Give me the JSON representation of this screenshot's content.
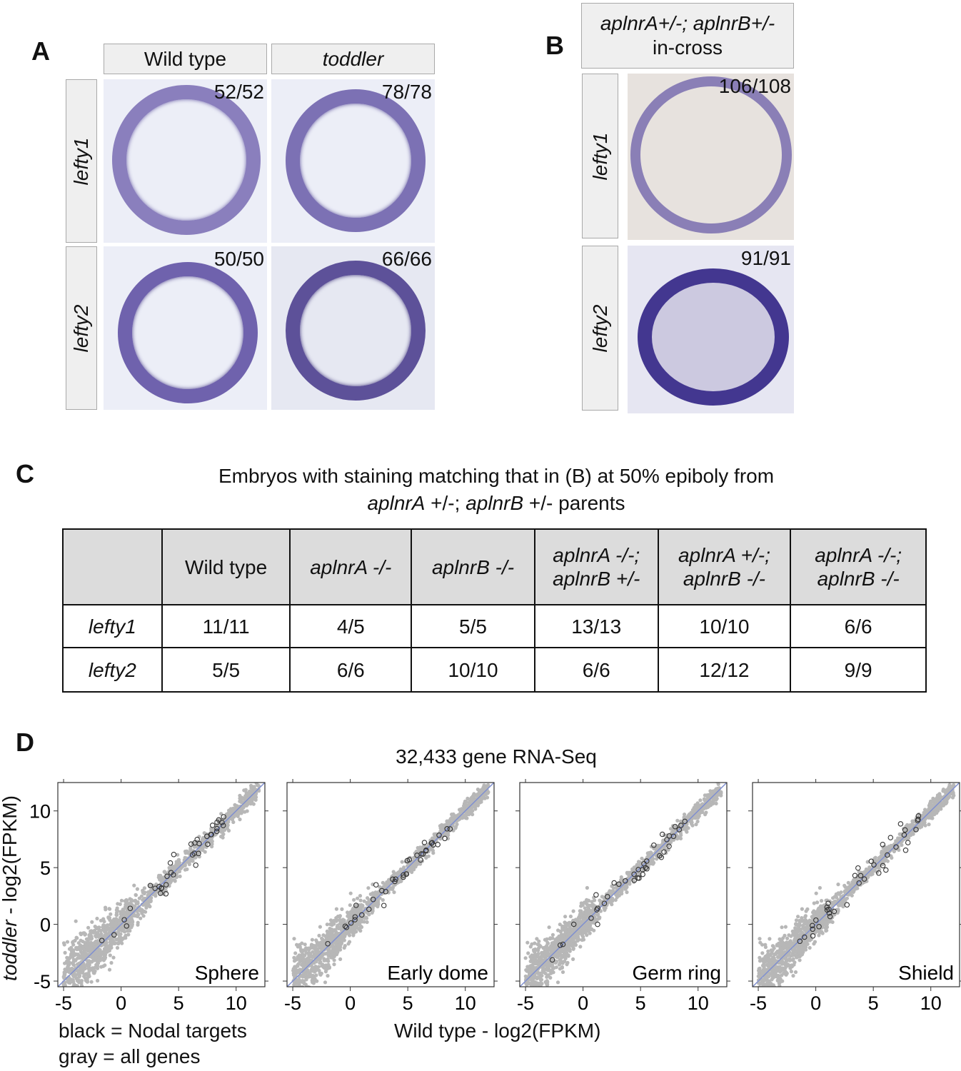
{
  "panelA": {
    "label": "A",
    "col1": "Wild type",
    "col2": "toddler",
    "row1": "lefty1",
    "row2": "lefty2",
    "counts": [
      "52/52",
      "78/78",
      "50/50",
      "66/66"
    ]
  },
  "panelB": {
    "label": "B",
    "header_line1": "aplnrA+/-; aplnrB+/-",
    "header_line2": "in-cross",
    "row1": "lefty1",
    "row2": "lefty2",
    "counts": [
      "106/108",
      "91/91"
    ]
  },
  "panelC": {
    "label": "C",
    "caption_line1": "Embryos with staining matching that in (B) at 50% epiboly from",
    "caption_line2_a": "aplnrA",
    "caption_line2_b": " +/-; ",
    "caption_line2_c": "aplnrB",
    "caption_line2_d": " +/- parents",
    "columns": [
      {
        "l1": "Wild type",
        "italic": false
      },
      {
        "l1": "aplnrA -/-",
        "italic": true
      },
      {
        "l1": "aplnrB -/-",
        "italic": true
      },
      {
        "l1": "aplnrA -/-;",
        "l2": "aplnrB +/-",
        "italic": true
      },
      {
        "l1": "aplnrA +/-;",
        "l2": "aplnrB -/-",
        "italic": true
      },
      {
        "l1": "aplnrA -/-;",
        "l2": "aplnrB -/-",
        "italic": true
      }
    ],
    "rows": [
      {
        "label": "lefty1",
        "values": [
          "11/11",
          "4/5",
          "5/5",
          "13/13",
          "10/10",
          "6/6"
        ]
      },
      {
        "label": "lefty2",
        "values": [
          "5/5",
          "6/6",
          "10/10",
          "6/6",
          "12/12",
          "9/9"
        ]
      }
    ]
  },
  "panelD": {
    "label": "D",
    "title": "32,433 gene RNA-Seq",
    "ylabel_italic": "toddler",
    "ylabel_rest": " - log2(FPKM)",
    "xlabel": "Wild type - log2(FPKM)",
    "legend_black": "black = Nodal targets",
    "legend_gray": "gray = all genes"
  },
  "chart_data": [
    {
      "type": "scatter",
      "title": "Sphere",
      "xlim": [
        -5.5,
        12.5
      ],
      "ylim": [
        -5.5,
        12.5
      ],
      "xticks": [
        -5,
        0,
        5,
        10
      ],
      "yticks": [
        -5,
        0,
        5,
        10
      ],
      "series": [
        {
          "name": "gray = all genes"
        },
        {
          "name": "black = Nodal targets"
        }
      ]
    },
    {
      "type": "scatter",
      "title": "Early dome",
      "xlim": [
        -5.5,
        12.5
      ],
      "ylim": [
        -5.5,
        12.5
      ],
      "xticks": [
        -5,
        0,
        5,
        10
      ],
      "yticks": [
        -5,
        0,
        5,
        10
      ],
      "series": [
        {
          "name": "gray = all genes"
        },
        {
          "name": "black = Nodal targets"
        }
      ]
    },
    {
      "type": "scatter",
      "title": "Germ ring",
      "xlim": [
        -5.5,
        12.5
      ],
      "ylim": [
        -5.5,
        12.5
      ],
      "xticks": [
        -5,
        0,
        5,
        10
      ],
      "yticks": [
        -5,
        0,
        5,
        10
      ],
      "series": [
        {
          "name": "gray = all genes"
        },
        {
          "name": "black = Nodal targets"
        }
      ]
    },
    {
      "type": "scatter",
      "title": "Shield",
      "xlim": [
        -5.5,
        12.5
      ],
      "ylim": [
        -5.5,
        12.5
      ],
      "xticks": [
        -5,
        0,
        5,
        10
      ],
      "yticks": [
        -5,
        0,
        5,
        10
      ],
      "series": [
        {
          "name": "gray = all genes"
        },
        {
          "name": "black = Nodal targets"
        }
      ]
    }
  ]
}
